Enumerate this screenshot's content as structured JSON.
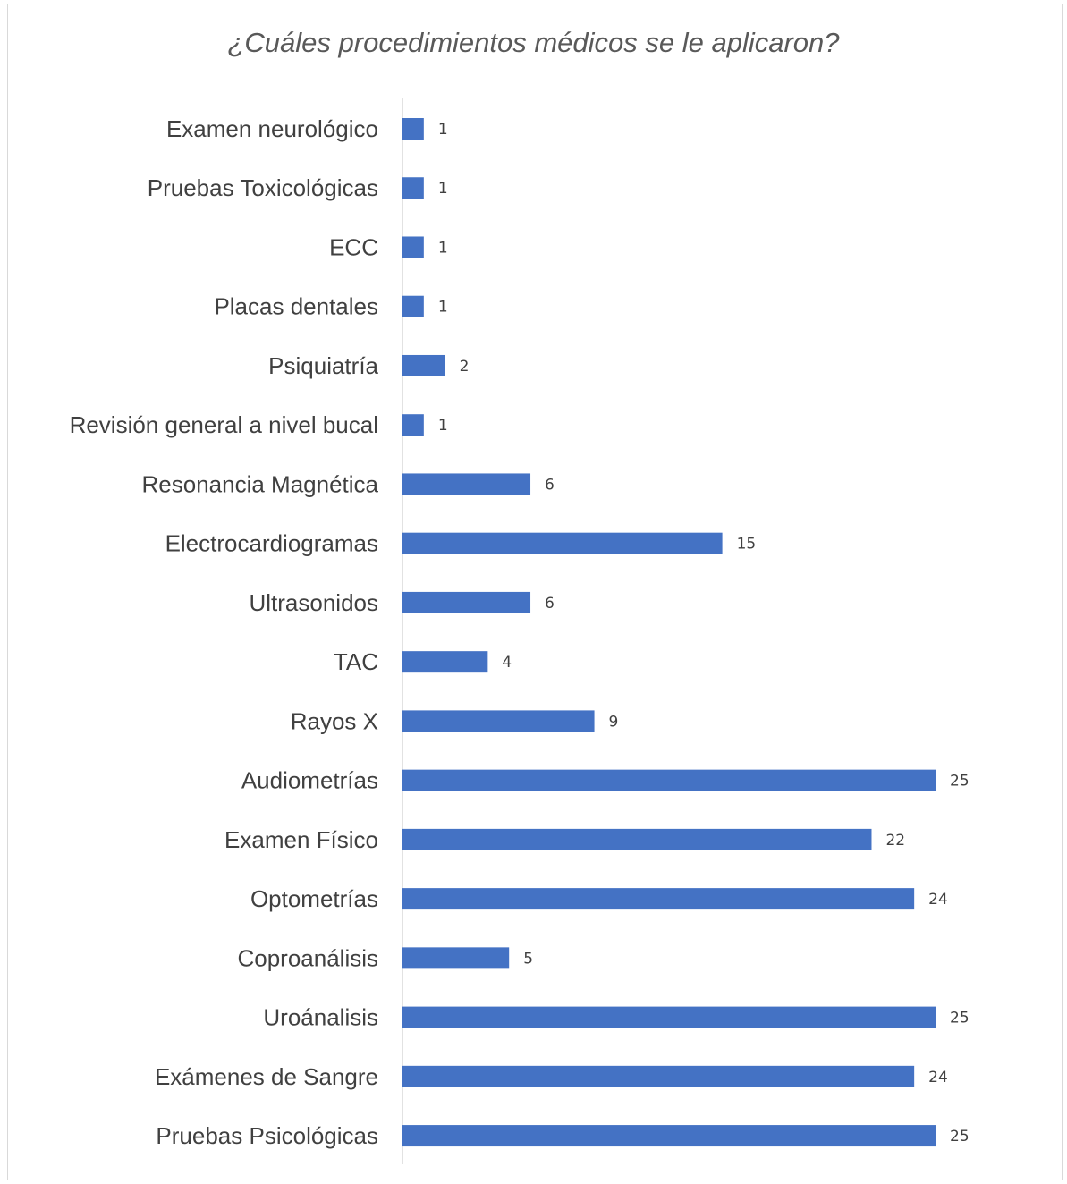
{
  "chart_data": {
    "type": "bar",
    "orientation": "horizontal",
    "title": "¿Cuáles procedimientos médicos se le aplicaron?",
    "categories": [
      "Examen neurológico",
      "Pruebas Toxicológicas",
      "ECC",
      "Placas dentales",
      "Psiquiatría",
      "Revisión general a  nivel bucal",
      "Resonancia Magnética",
      "Electrocardiogramas",
      "Ultrasonidos",
      "TAC",
      "Rayos X",
      "Audiometrías",
      "Examen Físico",
      "Optometrías",
      "Coproanálisis",
      "Uroánalisis",
      "Exámenes de Sangre",
      "Pruebas Psicológicas"
    ],
    "values": [
      1,
      1,
      1,
      1,
      2,
      1,
      6,
      15,
      6,
      4,
      9,
      25,
      22,
      24,
      5,
      25,
      24,
      25
    ],
    "xlim": [
      0,
      25
    ],
    "grid": false,
    "legend": "none",
    "bar_color": "#4472c4",
    "data_labels": true
  }
}
